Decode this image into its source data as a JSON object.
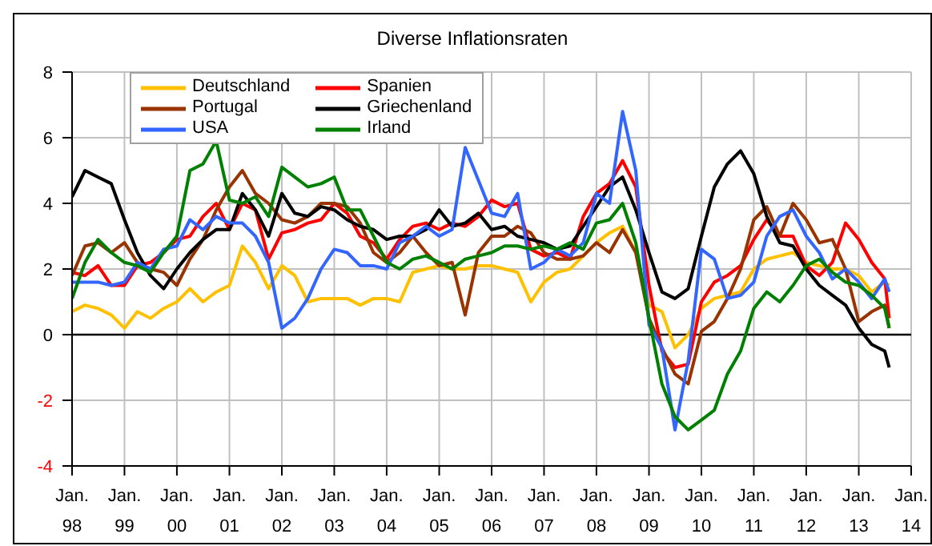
{
  "chart_data": {
    "type": "line",
    "title": "Diverse Inflationsraten",
    "legend": "top left",
    "grid": true,
    "marker": "none",
    "line_style": "solid",
    "xlim": [
      "1998-01",
      "2014-01"
    ],
    "ylim": [
      -4,
      8
    ],
    "yticks": [
      -4,
      -2,
      0,
      2,
      4,
      6,
      8
    ],
    "xticks": [
      {
        "value": "1998-01",
        "label": "Jan. 98"
      },
      {
        "value": "1999-01",
        "label": "Jan. 99"
      },
      {
        "value": "2000-01",
        "label": "Jan. 00"
      },
      {
        "value": "2001-01",
        "label": "Jan. 01"
      },
      {
        "value": "2002-01",
        "label": "Jan. 02"
      },
      {
        "value": "2003-01",
        "label": "Jan. 03"
      },
      {
        "value": "2004-01",
        "label": "Jan. 04"
      },
      {
        "value": "2005-01",
        "label": "Jan. 05"
      },
      {
        "value": "2006-01",
        "label": "Jan. 06"
      },
      {
        "value": "2007-01",
        "label": "Jan. 07"
      },
      {
        "value": "2008-01",
        "label": "Jan. 08"
      },
      {
        "value": "2009-01",
        "label": "Jan. 09"
      },
      {
        "value": "2010-01",
        "label": "Jan. 10"
      },
      {
        "value": "2011-01",
        "label": "Jan. 11"
      },
      {
        "value": "2012-01",
        "label": "Jan. 12"
      },
      {
        "value": "2013-01",
        "label": "Jan. 13"
      },
      {
        "value": "2014-01",
        "label": "Jan. 14"
      }
    ],
    "ref_lines": [
      {
        "axis": "y",
        "value": 0,
        "color": "#000000"
      }
    ],
    "x": [
      "1998-01",
      "1998-04",
      "1998-07",
      "1998-10",
      "1999-01",
      "1999-04",
      "1999-07",
      "1999-10",
      "2000-01",
      "2000-04",
      "2000-07",
      "2000-10",
      "2001-01",
      "2001-04",
      "2001-07",
      "2001-10",
      "2002-01",
      "2002-04",
      "2002-07",
      "2002-10",
      "2003-01",
      "2003-04",
      "2003-07",
      "2003-10",
      "2004-01",
      "2004-04",
      "2004-07",
      "2004-10",
      "2005-01",
      "2005-04",
      "2005-07",
      "2005-10",
      "2006-01",
      "2006-04",
      "2006-07",
      "2006-10",
      "2007-01",
      "2007-04",
      "2007-07",
      "2007-10",
      "2008-01",
      "2008-04",
      "2008-07",
      "2008-10",
      "2009-01",
      "2009-04",
      "2009-07",
      "2009-10",
      "2010-01",
      "2010-04",
      "2010-07",
      "2010-10",
      "2011-01",
      "2011-04",
      "2011-07",
      "2011-10",
      "2012-01",
      "2012-04",
      "2012-07",
      "2012-10",
      "2013-01",
      "2013-04",
      "2013-07",
      "2013-08"
    ],
    "series": [
      {
        "name": "Deutschland",
        "color": "#ffc000",
        "values": [
          0.7,
          0.9,
          0.8,
          0.6,
          0.2,
          0.7,
          0.5,
          0.8,
          1.0,
          1.4,
          1.0,
          1.3,
          1.5,
          2.7,
          2.2,
          1.4,
          2.1,
          1.8,
          1.0,
          1.1,
          1.1,
          1.1,
          0.9,
          1.1,
          1.1,
          1.0,
          1.9,
          2.0,
          2.1,
          2.0,
          2.0,
          2.1,
          2.1,
          2.0,
          1.9,
          1.0,
          1.6,
          1.9,
          2.0,
          2.4,
          2.8,
          3.1,
          3.3,
          2.5,
          0.9,
          0.7,
          -0.4,
          0.0,
          0.8,
          1.1,
          1.2,
          1.3,
          2.0,
          2.3,
          2.4,
          2.5,
          2.2,
          2.1,
          2.0,
          2.0,
          1.8,
          1.3,
          1.6,
          1.5
        ]
      },
      {
        "name": "Spanien",
        "color": "#ff0000",
        "values": [
          1.9,
          1.8,
          2.1,
          1.5,
          1.5,
          2.1,
          2.2,
          2.5,
          2.9,
          3.0,
          3.6,
          4.0,
          3.2,
          4.0,
          3.8,
          2.3,
          3.1,
          3.2,
          3.4,
          3.5,
          4.0,
          3.7,
          3.0,
          2.8,
          2.3,
          2.9,
          3.3,
          3.4,
          3.2,
          3.4,
          3.3,
          3.6,
          4.1,
          3.9,
          4.0,
          2.6,
          2.4,
          2.5,
          2.3,
          3.6,
          4.3,
          4.6,
          5.3,
          4.5,
          1.5,
          -0.5,
          -1.0,
          -0.9,
          1.0,
          1.6,
          1.8,
          2.1,
          2.9,
          3.5,
          3.0,
          3.0,
          2.1,
          1.8,
          2.2,
          3.4,
          2.9,
          2.2,
          1.7,
          0.5
        ]
      },
      {
        "name": "Portugal",
        "color": "#993300",
        "values": [
          1.8,
          2.7,
          2.8,
          2.5,
          2.8,
          2.2,
          2.0,
          1.9,
          1.5,
          2.3,
          2.9,
          3.8,
          4.5,
          5.0,
          4.3,
          4.0,
          3.5,
          3.4,
          3.6,
          4.0,
          4.0,
          3.9,
          3.4,
          2.5,
          2.2,
          2.5,
          3.0,
          2.5,
          2.1,
          2.2,
          0.6,
          2.5,
          3.0,
          3.0,
          3.3,
          3.1,
          2.5,
          2.3,
          2.3,
          2.4,
          2.8,
          2.5,
          3.2,
          2.5,
          0.5,
          -0.4,
          -1.2,
          -1.5,
          0.1,
          0.4,
          1.1,
          2.0,
          3.5,
          3.9,
          3.0,
          4.0,
          3.5,
          2.8,
          2.9,
          2.0,
          0.4,
          0.7,
          0.9,
          0.2
        ]
      },
      {
        "name": "Griechenland",
        "color": "#000000",
        "values": [
          4.2,
          5.0,
          4.8,
          4.6,
          3.5,
          2.5,
          1.8,
          1.4,
          2.0,
          2.5,
          2.9,
          3.2,
          3.2,
          4.3,
          3.8,
          3.0,
          4.3,
          3.7,
          3.6,
          3.9,
          3.8,
          3.5,
          3.3,
          3.2,
          2.9,
          3.0,
          3.0,
          3.2,
          3.8,
          3.3,
          3.4,
          3.7,
          3.2,
          3.3,
          3.0,
          2.9,
          2.8,
          2.6,
          2.7,
          3.3,
          3.9,
          4.5,
          4.8,
          3.8,
          2.5,
          1.3,
          1.1,
          1.4,
          3.0,
          4.5,
          5.2,
          5.6,
          4.9,
          3.6,
          2.8,
          2.7,
          2.0,
          1.5,
          1.2,
          0.9,
          0.2,
          -0.3,
          -0.5,
          -1.0
        ]
      },
      {
        "name": "USA",
        "color": "#3366ff",
        "values": [
          1.6,
          1.6,
          1.6,
          1.5,
          1.6,
          2.2,
          2.0,
          2.6,
          2.7,
          3.5,
          3.2,
          3.6,
          3.4,
          3.4,
          3.0,
          2.2,
          0.2,
          0.5,
          1.1,
          2.0,
          2.6,
          2.5,
          2.1,
          2.1,
          2.0,
          2.8,
          3.0,
          3.3,
          3.0,
          3.2,
          5.7,
          4.7,
          3.7,
          3.6,
          4.3,
          2.0,
          2.2,
          2.6,
          2.4,
          2.8,
          4.3,
          4.0,
          6.8,
          5.0,
          0.3,
          -0.4,
          -2.9,
          -0.8,
          2.6,
          2.3,
          1.1,
          1.2,
          1.6,
          3.0,
          3.6,
          3.8,
          3.0,
          2.5,
          1.7,
          2.0,
          1.6,
          1.1,
          1.7,
          1.3
        ]
      },
      {
        "name": "Irland",
        "color": "#008000",
        "values": [
          1.1,
          2.2,
          2.9,
          2.5,
          2.2,
          2.1,
          1.9,
          2.5,
          3.0,
          5.0,
          5.2,
          5.9,
          4.1,
          4.0,
          4.2,
          3.6,
          5.1,
          4.8,
          4.5,
          4.6,
          4.8,
          3.8,
          3.8,
          3.0,
          2.2,
          2.0,
          2.3,
          2.4,
          2.2,
          2.0,
          2.3,
          2.4,
          2.5,
          2.7,
          2.7,
          2.6,
          2.7,
          2.6,
          2.8,
          2.6,
          3.4,
          3.5,
          4.0,
          2.8,
          0.5,
          -1.5,
          -2.5,
          -2.9,
          -2.6,
          -2.3,
          -1.2,
          -0.5,
          0.8,
          1.3,
          1.0,
          1.5,
          2.1,
          2.3,
          1.9,
          1.6,
          1.5,
          1.2,
          0.8,
          0.2
        ]
      }
    ]
  }
}
